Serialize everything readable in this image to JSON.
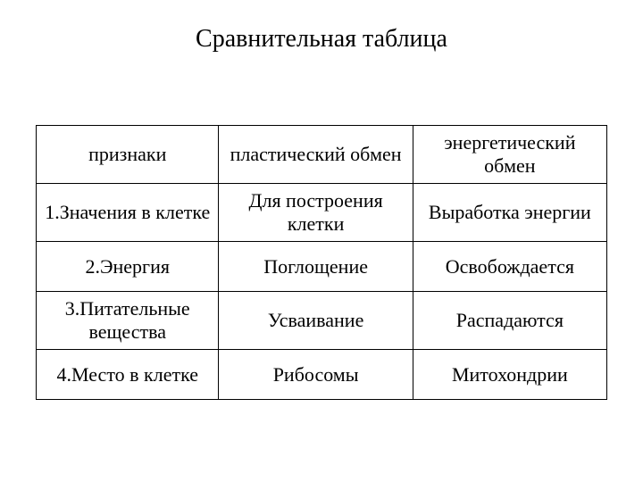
{
  "title": "Сравнительная таблица",
  "table": {
    "columns": [
      {
        "label": "признаки",
        "width": "32%",
        "align": "center"
      },
      {
        "label": "пластический обмен",
        "width": "34%",
        "align": "center"
      },
      {
        "label": "энергетический обмен",
        "width": "34%",
        "align": "center"
      }
    ],
    "rows": [
      [
        "1.Значения в клетке",
        "Для построения клетки",
        "Выработка энергии"
      ],
      [
        "2.Энергия",
        "Поглощение",
        "Освобождается"
      ],
      [
        "3.Питательные вещества",
        "Усваивание",
        "Распадаются"
      ],
      [
        "4.Место в клетке",
        "Рибосомы",
        "Митохондрии"
      ]
    ],
    "border_color": "#000000",
    "border_width": 1.5,
    "background_color": "#ffffff",
    "font_family": "Times New Roman",
    "title_fontsize": 28,
    "cell_fontsize": 22,
    "text_color": "#000000"
  }
}
